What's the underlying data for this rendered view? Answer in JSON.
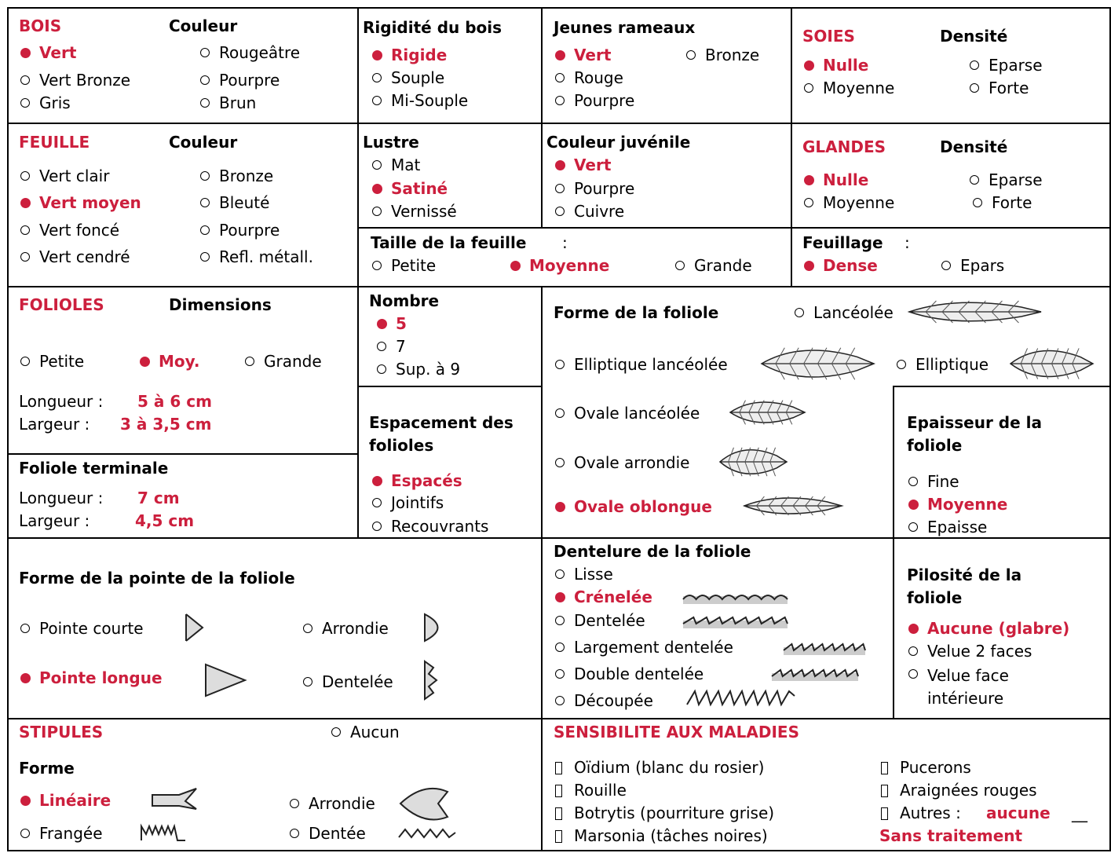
{
  "bois": {
    "title": "BOIS",
    "subtitle": "Couleur",
    "options": [
      {
        "label": "Vert",
        "selected": true
      },
      {
        "label": "Rougeâtre"
      },
      {
        "label": "Vert Bronze"
      },
      {
        "label": "Pourpre"
      },
      {
        "label": "Gris"
      },
      {
        "label": "Brun"
      }
    ]
  },
  "rigidite": {
    "title": "Rigidité du bois",
    "options": [
      {
        "label": "Rigide",
        "selected": true
      },
      {
        "label": "Souple"
      },
      {
        "label": "Mi-Souple"
      }
    ]
  },
  "jeunes_rameaux": {
    "title": "Jeunes rameaux",
    "options": [
      {
        "label": "Vert",
        "selected": true
      },
      {
        "label": "Bronze"
      },
      {
        "label": "Rouge"
      },
      {
        "label": "Pourpre"
      }
    ]
  },
  "soies": {
    "title": "SOIES",
    "subtitle": "Densité",
    "options": [
      {
        "label": "Nulle",
        "selected": true
      },
      {
        "label": "Eparse"
      },
      {
        "label": "Moyenne"
      },
      {
        "label": "Forte"
      }
    ]
  },
  "feuille": {
    "title": "FEUILLE",
    "subtitle": "Couleur",
    "options": [
      {
        "label": "Vert clair"
      },
      {
        "label": "Bronze"
      },
      {
        "label": "Vert moyen",
        "selected": true
      },
      {
        "label": "Bleuté"
      },
      {
        "label": "Vert foncé"
      },
      {
        "label": "Pourpre"
      },
      {
        "label": "Vert cendré"
      },
      {
        "label": "Refl. métall."
      }
    ]
  },
  "lustre": {
    "title": "Lustre",
    "options": [
      {
        "label": "Mat"
      },
      {
        "label": "Satiné",
        "selected": true
      },
      {
        "label": "Vernissé"
      }
    ]
  },
  "couleur_juvenile": {
    "title": "Couleur juvénile",
    "options": [
      {
        "label": "Vert",
        "selected": true
      },
      {
        "label": "Pourpre"
      },
      {
        "label": "Cuivre"
      }
    ]
  },
  "glandes": {
    "title": "GLANDES",
    "subtitle": "Densité",
    "options": [
      {
        "label": "Nulle",
        "selected": true
      },
      {
        "label": "Eparse"
      },
      {
        "label": "Moyenne"
      },
      {
        "label": "Forte"
      }
    ]
  },
  "taille_feuille": {
    "title": "Taille de la feuille",
    "separator": ":",
    "options": [
      {
        "label": "Petite"
      },
      {
        "label": "Moyenne",
        "selected": true
      },
      {
        "label": "Grande"
      }
    ]
  },
  "feuillage": {
    "title": "Feuillage",
    "separator": ":",
    "options": [
      {
        "label": "Dense",
        "selected": true
      },
      {
        "label": "Epars"
      }
    ]
  },
  "folioles": {
    "title": "FOLIOLES",
    "subtitle": "Dimensions",
    "options": [
      {
        "label": "Petite"
      },
      {
        "label": "Moy.",
        "selected": true
      },
      {
        "label": "Grande"
      }
    ],
    "longueur": {
      "label": "Longueur :",
      "value": "5 à 6 cm"
    },
    "largeur": {
      "label": "Largeur :",
      "value": "3 à 3,5 cm"
    }
  },
  "foliole_terminale": {
    "title": "Foliole terminale",
    "longueur": {
      "label": "Longueur :",
      "value": "7 cm"
    },
    "largeur": {
      "label": "Largeur :",
      "value": "4,5 cm"
    }
  },
  "nombre": {
    "title": "Nombre",
    "options": [
      {
        "label": "5",
        "selected": true
      },
      {
        "label": "7"
      },
      {
        "label": "Sup. à 9"
      }
    ]
  },
  "espacement": {
    "title": "Espacement des folioles",
    "options": [
      {
        "label": "Espacés",
        "selected": true
      },
      {
        "label": "Jointifs"
      },
      {
        "label": "Recouvrants"
      }
    ]
  },
  "forme_foliole": {
    "title": "Forme de la foliole",
    "options": [
      {
        "label": "Lancéolée"
      },
      {
        "label": "Elliptique lancéolée"
      },
      {
        "label": "Elliptique"
      },
      {
        "label": "Ovale lancéolée"
      },
      {
        "label": "Ovale arrondie"
      },
      {
        "label": "Ovale oblongue",
        "selected": true
      }
    ]
  },
  "epaisseur": {
    "title": "Epaisseur de la foliole",
    "options": [
      {
        "label": "Fine"
      },
      {
        "label": "Moyenne",
        "selected": true
      },
      {
        "label": "Epaisse"
      }
    ]
  },
  "forme_pointe": {
    "title": "Forme de la pointe de la foliole",
    "options": [
      {
        "label": "Pointe courte"
      },
      {
        "label": "Arrondie"
      },
      {
        "label": "Pointe longue",
        "selected": true
      },
      {
        "label": "Dentelée"
      }
    ]
  },
  "dentelure": {
    "title": "Dentelure de la foliole",
    "options": [
      {
        "label": "Lisse"
      },
      {
        "label": "Crénelée",
        "selected": true
      },
      {
        "label": "Dentelée"
      },
      {
        "label": "Largement dentelée"
      },
      {
        "label": "Double dentelée"
      },
      {
        "label": "Découpée"
      }
    ]
  },
  "pilosite": {
    "title": "Pilosité de la foliole",
    "options": [
      {
        "label": "Aucune (glabre)",
        "selected": true
      },
      {
        "label": "Velue 2 faces"
      },
      {
        "label": "Velue face intérieure"
      }
    ]
  },
  "stipules": {
    "title": "STIPULES",
    "none_option": {
      "label": "Aucun"
    },
    "forme_title": "Forme",
    "options": [
      {
        "label": "Linéaire",
        "selected": true
      },
      {
        "label": "Arrondie"
      },
      {
        "label": "Frangée"
      },
      {
        "label": "Dentée"
      }
    ]
  },
  "maladies": {
    "title": "SENSIBILITE AUX MALADIES",
    "items": [
      "Oïdium (blanc du rosier)",
      "Rouille",
      "Botrytis (pourriture grise)",
      "Marsonia (tâches noires)",
      "Pucerons",
      "Araignées rouges"
    ],
    "autres": {
      "label": "Autres :",
      "value": "aucune",
      "blank": "__"
    },
    "note": "Sans traitement"
  }
}
